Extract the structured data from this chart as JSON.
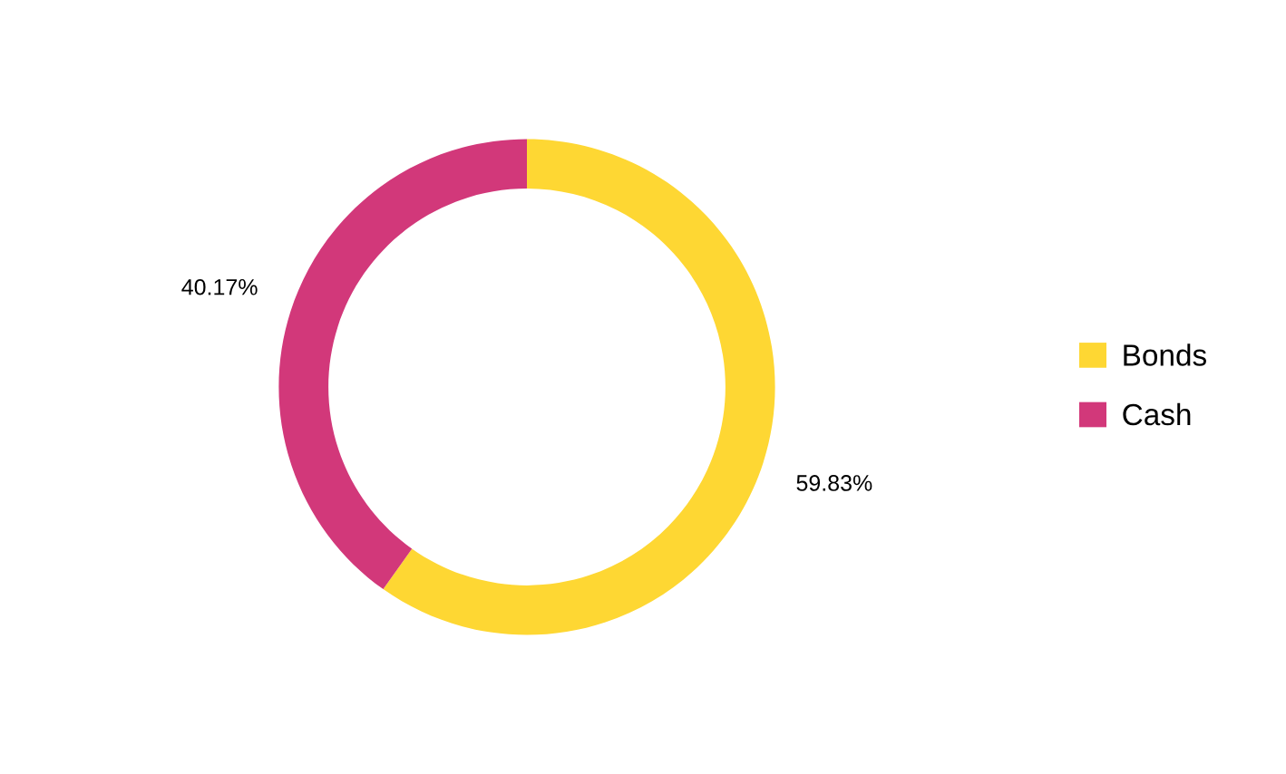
{
  "chart_data": {
    "type": "donut",
    "categories": [
      "Bonds",
      "Cash"
    ],
    "values": [
      59.83,
      40.17
    ],
    "colors": [
      "#fed733",
      "#d2387a"
    ],
    "value_labels": [
      "59.83%",
      "40.17%"
    ],
    "legend": "right"
  }
}
